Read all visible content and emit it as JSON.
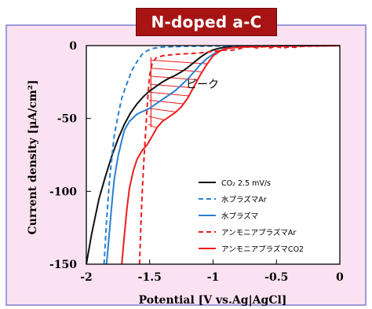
{
  "colors": {
    "panel_bg": "#fbe2f2",
    "panel_border": "#7f7fd0",
    "plot_bg": "#ffffff",
    "title_bg": "#a81414",
    "co2": "#111111",
    "water": "#2a7fd0",
    "ammonia": "#ee1c1c",
    "hatch": "#ee1c1c"
  },
  "chart_data": {
    "type": "line",
    "title": "N-doped a-C",
    "xlabel": "Potential [V vs.Ag|AgCl]",
    "ylabel": "Current density [μA/cm²]",
    "xlim": [
      -2,
      0
    ],
    "ylim": [
      -150,
      0
    ],
    "x_ticks": [
      -2,
      -1.5,
      -1,
      -0.5,
      0
    ],
    "x_tick_labels": [
      "-2",
      "-1.5",
      "-1",
      "-0.5",
      "0"
    ],
    "y_ticks": [
      0,
      -50,
      -100,
      -150
    ],
    "y_tick_labels": [
      "0",
      "-50",
      "-100",
      "-150"
    ],
    "grid": false,
    "legend_position": "bottom-right",
    "annotation": "ピーク",
    "series": [
      {
        "name": "CO₂ 2.5 mV/s",
        "color": "#111111",
        "dash": "solid",
        "points": [
          [
            -2.0,
            -150
          ],
          [
            -1.96,
            -130
          ],
          [
            -1.9,
            -105
          ],
          [
            -1.85,
            -90
          ],
          [
            -1.8,
            -76
          ],
          [
            -1.75,
            -64
          ],
          [
            -1.7,
            -54
          ],
          [
            -1.65,
            -46
          ],
          [
            -1.6,
            -40
          ],
          [
            -1.55,
            -35
          ],
          [
            -1.5,
            -31
          ],
          [
            -1.45,
            -28
          ],
          [
            -1.4,
            -25
          ],
          [
            -1.35,
            -22.5
          ],
          [
            -1.3,
            -20.5
          ],
          [
            -1.25,
            -18
          ],
          [
            -1.2,
            -15
          ],
          [
            -1.15,
            -11.5
          ],
          [
            -1.1,
            -8
          ],
          [
            -1.05,
            -5
          ],
          [
            -1.0,
            -3
          ],
          [
            -0.95,
            -1.8
          ],
          [
            -0.9,
            -1
          ],
          [
            -0.8,
            -0.5
          ],
          [
            -0.7,
            -0.3
          ],
          [
            -0.5,
            -0.2
          ],
          [
            0,
            0
          ]
        ]
      },
      {
        "name": "水プラズマAr",
        "color": "#2a7fd0",
        "dash": "dashed",
        "points": [
          [
            -1.86,
            -150
          ],
          [
            -1.84,
            -120
          ],
          [
            -1.82,
            -95
          ],
          [
            -1.8,
            -78
          ],
          [
            -1.78,
            -62
          ],
          [
            -1.75,
            -48
          ],
          [
            -1.72,
            -36
          ],
          [
            -1.68,
            -26
          ],
          [
            -1.64,
            -17
          ],
          [
            -1.6,
            -11
          ],
          [
            -1.56,
            -6
          ],
          [
            -1.52,
            -3.5
          ],
          [
            -1.48,
            -2
          ],
          [
            -1.4,
            -1
          ],
          [
            -1.2,
            -0.5
          ],
          [
            -1.0,
            -0.3
          ],
          [
            -0.5,
            -0.1
          ],
          [
            0,
            0
          ]
        ]
      },
      {
        "name": "水プラズマ",
        "color": "#2a7fd0",
        "dash": "solid",
        "points": [
          [
            -1.84,
            -150
          ],
          [
            -1.82,
            -130
          ],
          [
            -1.8,
            -110
          ],
          [
            -1.78,
            -92
          ],
          [
            -1.75,
            -76
          ],
          [
            -1.72,
            -65
          ],
          [
            -1.7,
            -58
          ],
          [
            -1.66,
            -52
          ],
          [
            -1.6,
            -47
          ],
          [
            -1.55,
            -45
          ],
          [
            -1.5,
            -43
          ],
          [
            -1.45,
            -40
          ],
          [
            -1.4,
            -37
          ],
          [
            -1.35,
            -34
          ],
          [
            -1.3,
            -31
          ],
          [
            -1.25,
            -27
          ],
          [
            -1.2,
            -23
          ],
          [
            -1.15,
            -18
          ],
          [
            -1.1,
            -13
          ],
          [
            -1.05,
            -9
          ],
          [
            -1.0,
            -6
          ],
          [
            -0.95,
            -3.5
          ],
          [
            -0.9,
            -2
          ],
          [
            -0.8,
            -1
          ],
          [
            -0.5,
            -0.3
          ],
          [
            0,
            0
          ]
        ]
      },
      {
        "name": "アンモニアプラズマAr",
        "color": "#ee1c1c",
        "dash": "dashed",
        "points": [
          [
            -1.58,
            -150
          ],
          [
            -1.57,
            -125
          ],
          [
            -1.56,
            -102
          ],
          [
            -1.55,
            -85
          ],
          [
            -1.54,
            -70
          ],
          [
            -1.53,
            -56
          ],
          [
            -1.52,
            -42
          ],
          [
            -1.51,
            -30
          ],
          [
            -1.5,
            -20
          ],
          [
            -1.48,
            -12
          ],
          [
            -1.45,
            -8.5
          ],
          [
            -1.4,
            -7
          ],
          [
            -1.3,
            -6
          ],
          [
            -1.2,
            -5.5
          ],
          [
            -1.1,
            -5
          ],
          [
            -1.0,
            -4
          ],
          [
            -0.9,
            -3
          ],
          [
            -0.85,
            -3.2
          ],
          [
            -0.8,
            -2.2
          ],
          [
            -0.75,
            -1.2
          ],
          [
            -0.7,
            -0.8
          ],
          [
            -0.65,
            -1.6
          ],
          [
            -0.6,
            -0.7
          ],
          [
            -0.55,
            -1.5
          ],
          [
            -0.5,
            -0.7
          ],
          [
            -0.45,
            -1.7
          ],
          [
            -0.4,
            -0.9
          ],
          [
            -0.35,
            -1.2
          ],
          [
            -0.3,
            -0.5
          ],
          [
            -0.2,
            -0.3
          ],
          [
            0,
            0
          ]
        ]
      },
      {
        "name": "アンモニアプラズマCO2",
        "color": "#ee1c1c",
        "dash": "solid",
        "points": [
          [
            -1.72,
            -150
          ],
          [
            -1.7,
            -130
          ],
          [
            -1.68,
            -112
          ],
          [
            -1.66,
            -98
          ],
          [
            -1.63,
            -86
          ],
          [
            -1.6,
            -78
          ],
          [
            -1.56,
            -72
          ],
          [
            -1.52,
            -68
          ],
          [
            -1.48,
            -62
          ],
          [
            -1.44,
            -56
          ],
          [
            -1.4,
            -52
          ],
          [
            -1.35,
            -49
          ],
          [
            -1.3,
            -46
          ],
          [
            -1.25,
            -42
          ],
          [
            -1.2,
            -36
          ],
          [
            -1.15,
            -28
          ],
          [
            -1.1,
            -20
          ],
          [
            -1.05,
            -13
          ],
          [
            -1.0,
            -7
          ],
          [
            -0.95,
            -4
          ],
          [
            -0.9,
            -2
          ],
          [
            -0.8,
            -1
          ],
          [
            -0.5,
            -0.4
          ],
          [
            0,
            0
          ]
        ]
      }
    ]
  }
}
